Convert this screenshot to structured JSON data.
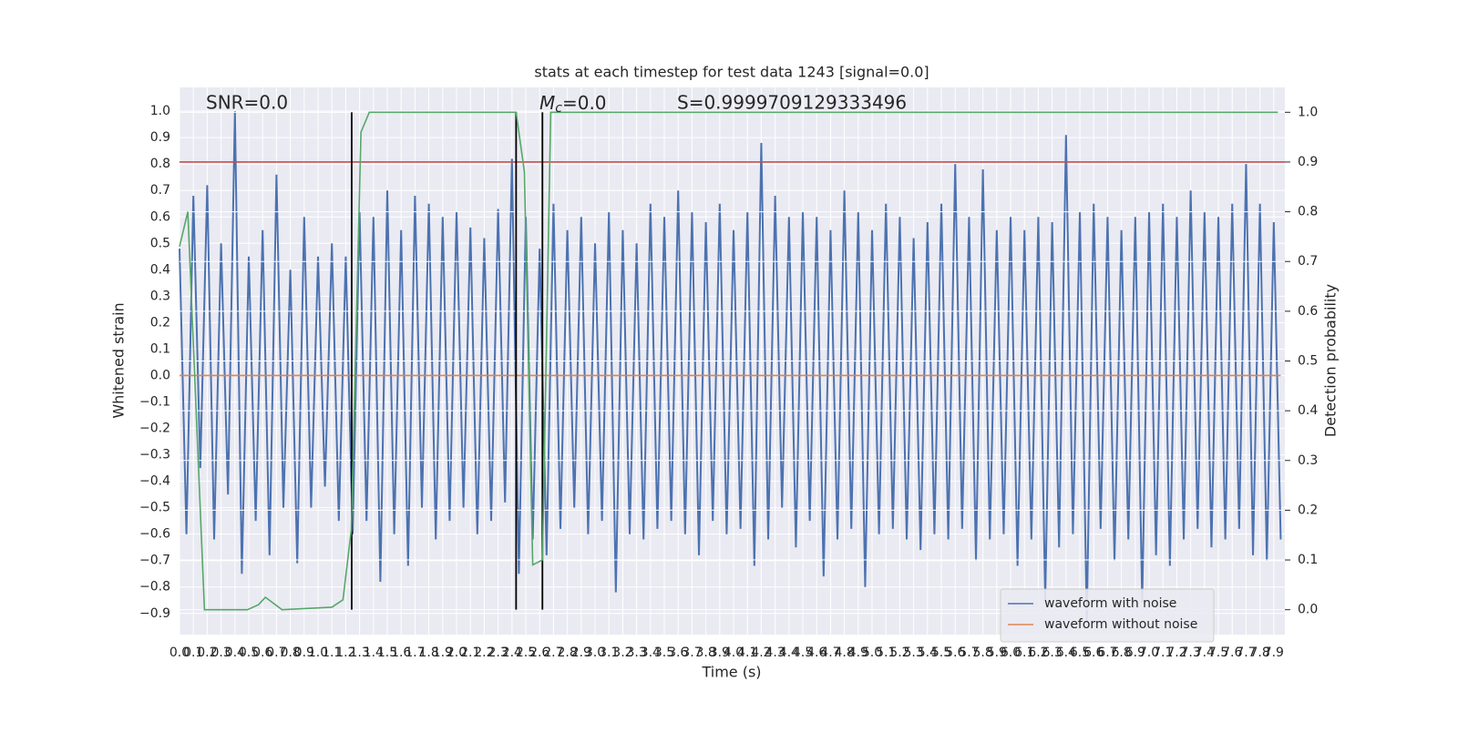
{
  "chart_data": {
    "type": "line",
    "title": "stats at each timestep for test data 1243 [signal=0.0]",
    "xlabel": "Time (s)",
    "ylabel": "Whitened strain",
    "y2label": "Detection probability",
    "grid": true,
    "legend": "lower right",
    "xlim": [
      0,
      7.98
    ],
    "ylim": [
      -0.98,
      1.09
    ],
    "y2lim": [
      -0.05,
      1.05
    ],
    "xticks": [
      {
        "value": 0,
        "label": "0.0"
      },
      0.1,
      0.2,
      0.3,
      0.4,
      0.5,
      0.6,
      0.7,
      0.8,
      0.9,
      {
        "value": 1,
        "label": "1.0"
      },
      1.1,
      1.2,
      1.3,
      1.4,
      1.5,
      1.6,
      1.7,
      1.8,
      1.9,
      {
        "value": 2,
        "label": "2.0"
      },
      2.1,
      2.2,
      2.3,
      2.4,
      2.5,
      2.6,
      2.7,
      2.8,
      2.9,
      {
        "value": 3,
        "label": "3.0"
      },
      3.1,
      3.2,
      3.3,
      3.4,
      3.5,
      3.6,
      3.7,
      3.8,
      3.9,
      {
        "value": 4,
        "label": "4.0"
      },
      4.1,
      4.2,
      4.3,
      4.4,
      4.5,
      4.6,
      4.7,
      4.8,
      4.9,
      {
        "value": 5,
        "label": "5.0"
      },
      5.1,
      5.2,
      5.3,
      5.4,
      5.5,
      5.6,
      5.7,
      5.8,
      5.9,
      {
        "value": 6,
        "label": "6.0"
      },
      6.1,
      6.2,
      6.3,
      6.4,
      6.5,
      6.6,
      6.7,
      6.8,
      6.9,
      {
        "value": 7,
        "label": "7.0"
      },
      7.1,
      7.2,
      7.3,
      7.4,
      7.5,
      7.6,
      7.7,
      7.8,
      7.9
    ],
    "yticks": [
      {
        "value": -0.9,
        "label": "−0.9"
      },
      {
        "value": -0.8,
        "label": "−0.8"
      },
      {
        "value": -0.7,
        "label": "−0.7"
      },
      {
        "value": -0.6,
        "label": "−0.6"
      },
      {
        "value": -0.5,
        "label": "−0.5"
      },
      {
        "value": -0.4,
        "label": "−0.4"
      },
      {
        "value": -0.3,
        "label": "−0.3"
      },
      {
        "value": -0.2,
        "label": "−0.2"
      },
      {
        "value": -0.1,
        "label": "−0.1"
      },
      {
        "value": 0,
        "label": "0.0"
      },
      0.1,
      0.2,
      0.3,
      0.4,
      0.5,
      0.6,
      0.7,
      0.8,
      0.9,
      {
        "value": 1,
        "label": "1.0"
      }
    ],
    "y2ticks": [
      {
        "value": 0,
        "label": "0.0"
      },
      0.1,
      0.2,
      0.3,
      0.4,
      0.5,
      0.6,
      0.7,
      0.8,
      0.9,
      {
        "value": 1,
        "label": "1.0"
      }
    ],
    "series": [
      {
        "name": "waveform with noise",
        "color": "#4c72b0",
        "x": [
          0,
          0.05,
          0.1,
          0.15,
          0.2,
          0.25,
          0.3,
          0.35,
          0.4,
          0.45,
          0.5,
          0.55,
          0.6,
          0.65,
          0.7,
          0.75,
          0.8,
          0.85,
          0.9,
          0.95,
          1,
          1.05,
          1.1,
          1.15,
          1.2,
          1.25,
          1.3,
          1.35,
          1.4,
          1.45,
          1.5,
          1.55,
          1.6,
          1.65,
          1.7,
          1.75,
          1.8,
          1.85,
          1.9,
          1.95,
          2,
          2.05,
          2.1,
          2.15,
          2.2,
          2.25,
          2.3,
          2.35,
          2.4,
          2.45,
          2.5,
          2.55,
          2.6,
          2.65,
          2.7,
          2.75,
          2.8,
          2.85,
          2.9,
          2.95,
          3,
          3.05,
          3.1,
          3.15,
          3.2,
          3.25,
          3.3,
          3.35,
          3.4,
          3.45,
          3.5,
          3.55,
          3.6,
          3.65,
          3.7,
          3.75,
          3.8,
          3.85,
          3.9,
          3.95,
          4,
          4.05,
          4.1,
          4.15,
          4.2,
          4.25,
          4.3,
          4.35,
          4.4,
          4.45,
          4.5,
          4.55,
          4.6,
          4.65,
          4.7,
          4.75,
          4.8,
          4.85,
          4.9,
          4.95,
          5,
          5.05,
          5.1,
          5.15,
          5.2,
          5.25,
          5.3,
          5.35,
          5.4,
          5.45,
          5.5,
          5.55,
          5.6,
          5.65,
          5.7,
          5.75,
          5.8,
          5.85,
          5.9,
          5.95,
          6,
          6.05,
          6.1,
          6.15,
          6.2,
          6.25,
          6.3,
          6.35,
          6.4,
          6.45,
          6.5,
          6.55,
          6.6,
          6.65,
          6.7,
          6.75,
          6.8,
          6.85,
          6.9,
          6.95,
          7,
          7.05,
          7.1,
          7.15,
          7.2,
          7.25,
          7.3,
          7.35,
          7.4,
          7.45,
          7.5,
          7.55,
          7.6,
          7.65,
          7.7,
          7.75,
          7.8,
          7.85,
          7.9,
          7.95
        ],
        "values": [
          0.48,
          -0.6,
          0.68,
          -0.35,
          0.72,
          -0.62,
          0.5,
          -0.45,
          1.0,
          -0.75,
          0.45,
          -0.55,
          0.55,
          -0.68,
          0.76,
          -0.5,
          0.4,
          -0.71,
          0.6,
          -0.5,
          0.45,
          -0.42,
          0.5,
          -0.55,
          0.45,
          -0.6,
          0.62,
          -0.55,
          0.6,
          -0.78,
          0.7,
          -0.6,
          0.55,
          -0.72,
          0.68,
          -0.5,
          0.65,
          -0.62,
          0.6,
          -0.55,
          0.62,
          -0.5,
          0.56,
          -0.6,
          0.52,
          -0.55,
          0.63,
          -0.48,
          0.82,
          -0.75,
          0.6,
          -0.62,
          0.48,
          -0.68,
          0.65,
          -0.58,
          0.55,
          -0.5,
          0.6,
          -0.6,
          0.5,
          -0.55,
          0.62,
          -0.82,
          0.55,
          -0.6,
          0.5,
          -0.62,
          0.65,
          -0.58,
          0.6,
          -0.55,
          0.7,
          -0.6,
          0.62,
          -0.68,
          0.58,
          -0.55,
          0.65,
          -0.6,
          0.55,
          -0.58,
          0.62,
          -0.72,
          0.88,
          -0.62,
          0.68,
          -0.5,
          0.6,
          -0.65,
          0.62,
          -0.55,
          0.6,
          -0.76,
          0.55,
          -0.62,
          0.7,
          -0.58,
          0.62,
          -0.8,
          0.55,
          -0.6,
          0.65,
          -0.58,
          0.6,
          -0.62,
          0.52,
          -0.66,
          0.58,
          -0.6,
          0.65,
          -0.62,
          0.8,
          -0.58,
          0.6,
          -0.7,
          0.78,
          -0.62,
          0.55,
          -0.6,
          0.6,
          -0.72,
          0.55,
          -0.62,
          0.6,
          -0.85,
          0.58,
          -0.65,
          0.91,
          -0.6,
          0.62,
          -0.93,
          0.65,
          -0.58,
          0.6,
          -0.7,
          0.55,
          -0.62,
          0.6,
          -0.86,
          0.62,
          -0.68,
          0.65,
          -0.72,
          0.6,
          -0.62,
          0.7,
          -0.58,
          0.62,
          -0.65,
          0.6,
          -0.62,
          0.65,
          -0.58,
          0.8,
          -0.68,
          0.65,
          -0.7,
          0.58,
          -0.62
        ]
      },
      {
        "name": "waveform without noise",
        "color": "#dd8452",
        "x": [
          0,
          7.95
        ],
        "values": [
          0,
          0
        ]
      },
      {
        "color": "#55a868",
        "axis": "y2",
        "x": [
          0,
          0.06,
          0.18,
          0.49,
          0.57,
          0.62,
          0.74,
          1.1,
          1.18,
          1.24,
          1.31,
          1.37,
          2.36,
          2.43,
          2.49,
          2.55,
          2.62,
          2.68,
          7.93
        ],
        "values": [
          0.73,
          0.8,
          0,
          0,
          0.01,
          0.025,
          0,
          0.005,
          0.02,
          0.16,
          0.96,
          1,
          1,
          1,
          0.88,
          0.09,
          0.1,
          1,
          1
        ]
      }
    ],
    "hlines": [
      {
        "value": 0.9,
        "axis": "y2",
        "color": "#c44e52"
      }
    ],
    "vlines": {
      "values": [
        1.243,
        2.43,
        2.62
      ],
      "axis": "y2",
      "span": [
        0,
        1
      ],
      "color": "#000000"
    },
    "annotations": {
      "snr": "SNR=0.0",
      "mc": [
        "M",
        "c",
        "=0.0"
      ],
      "s": "S=0.9999709129333496"
    }
  }
}
